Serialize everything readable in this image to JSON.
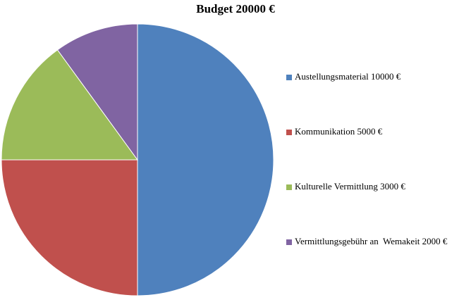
{
  "chart_data": {
    "type": "pie",
    "title": "Budget 20000 €",
    "categories": [
      "Austellungsmaterial 10000 €",
      "Kommunikation 5000 €",
      "Kulturelle Vermittlung 3000 €",
      "Vermittlungsgebühr an  Wemakeit 2000 €"
    ],
    "values": [
      10000,
      5000,
      3000,
      2000
    ],
    "colors": [
      "#4f81bd",
      "#c0504d",
      "#9bbb59",
      "#8064a2"
    ],
    "legend": "right"
  }
}
